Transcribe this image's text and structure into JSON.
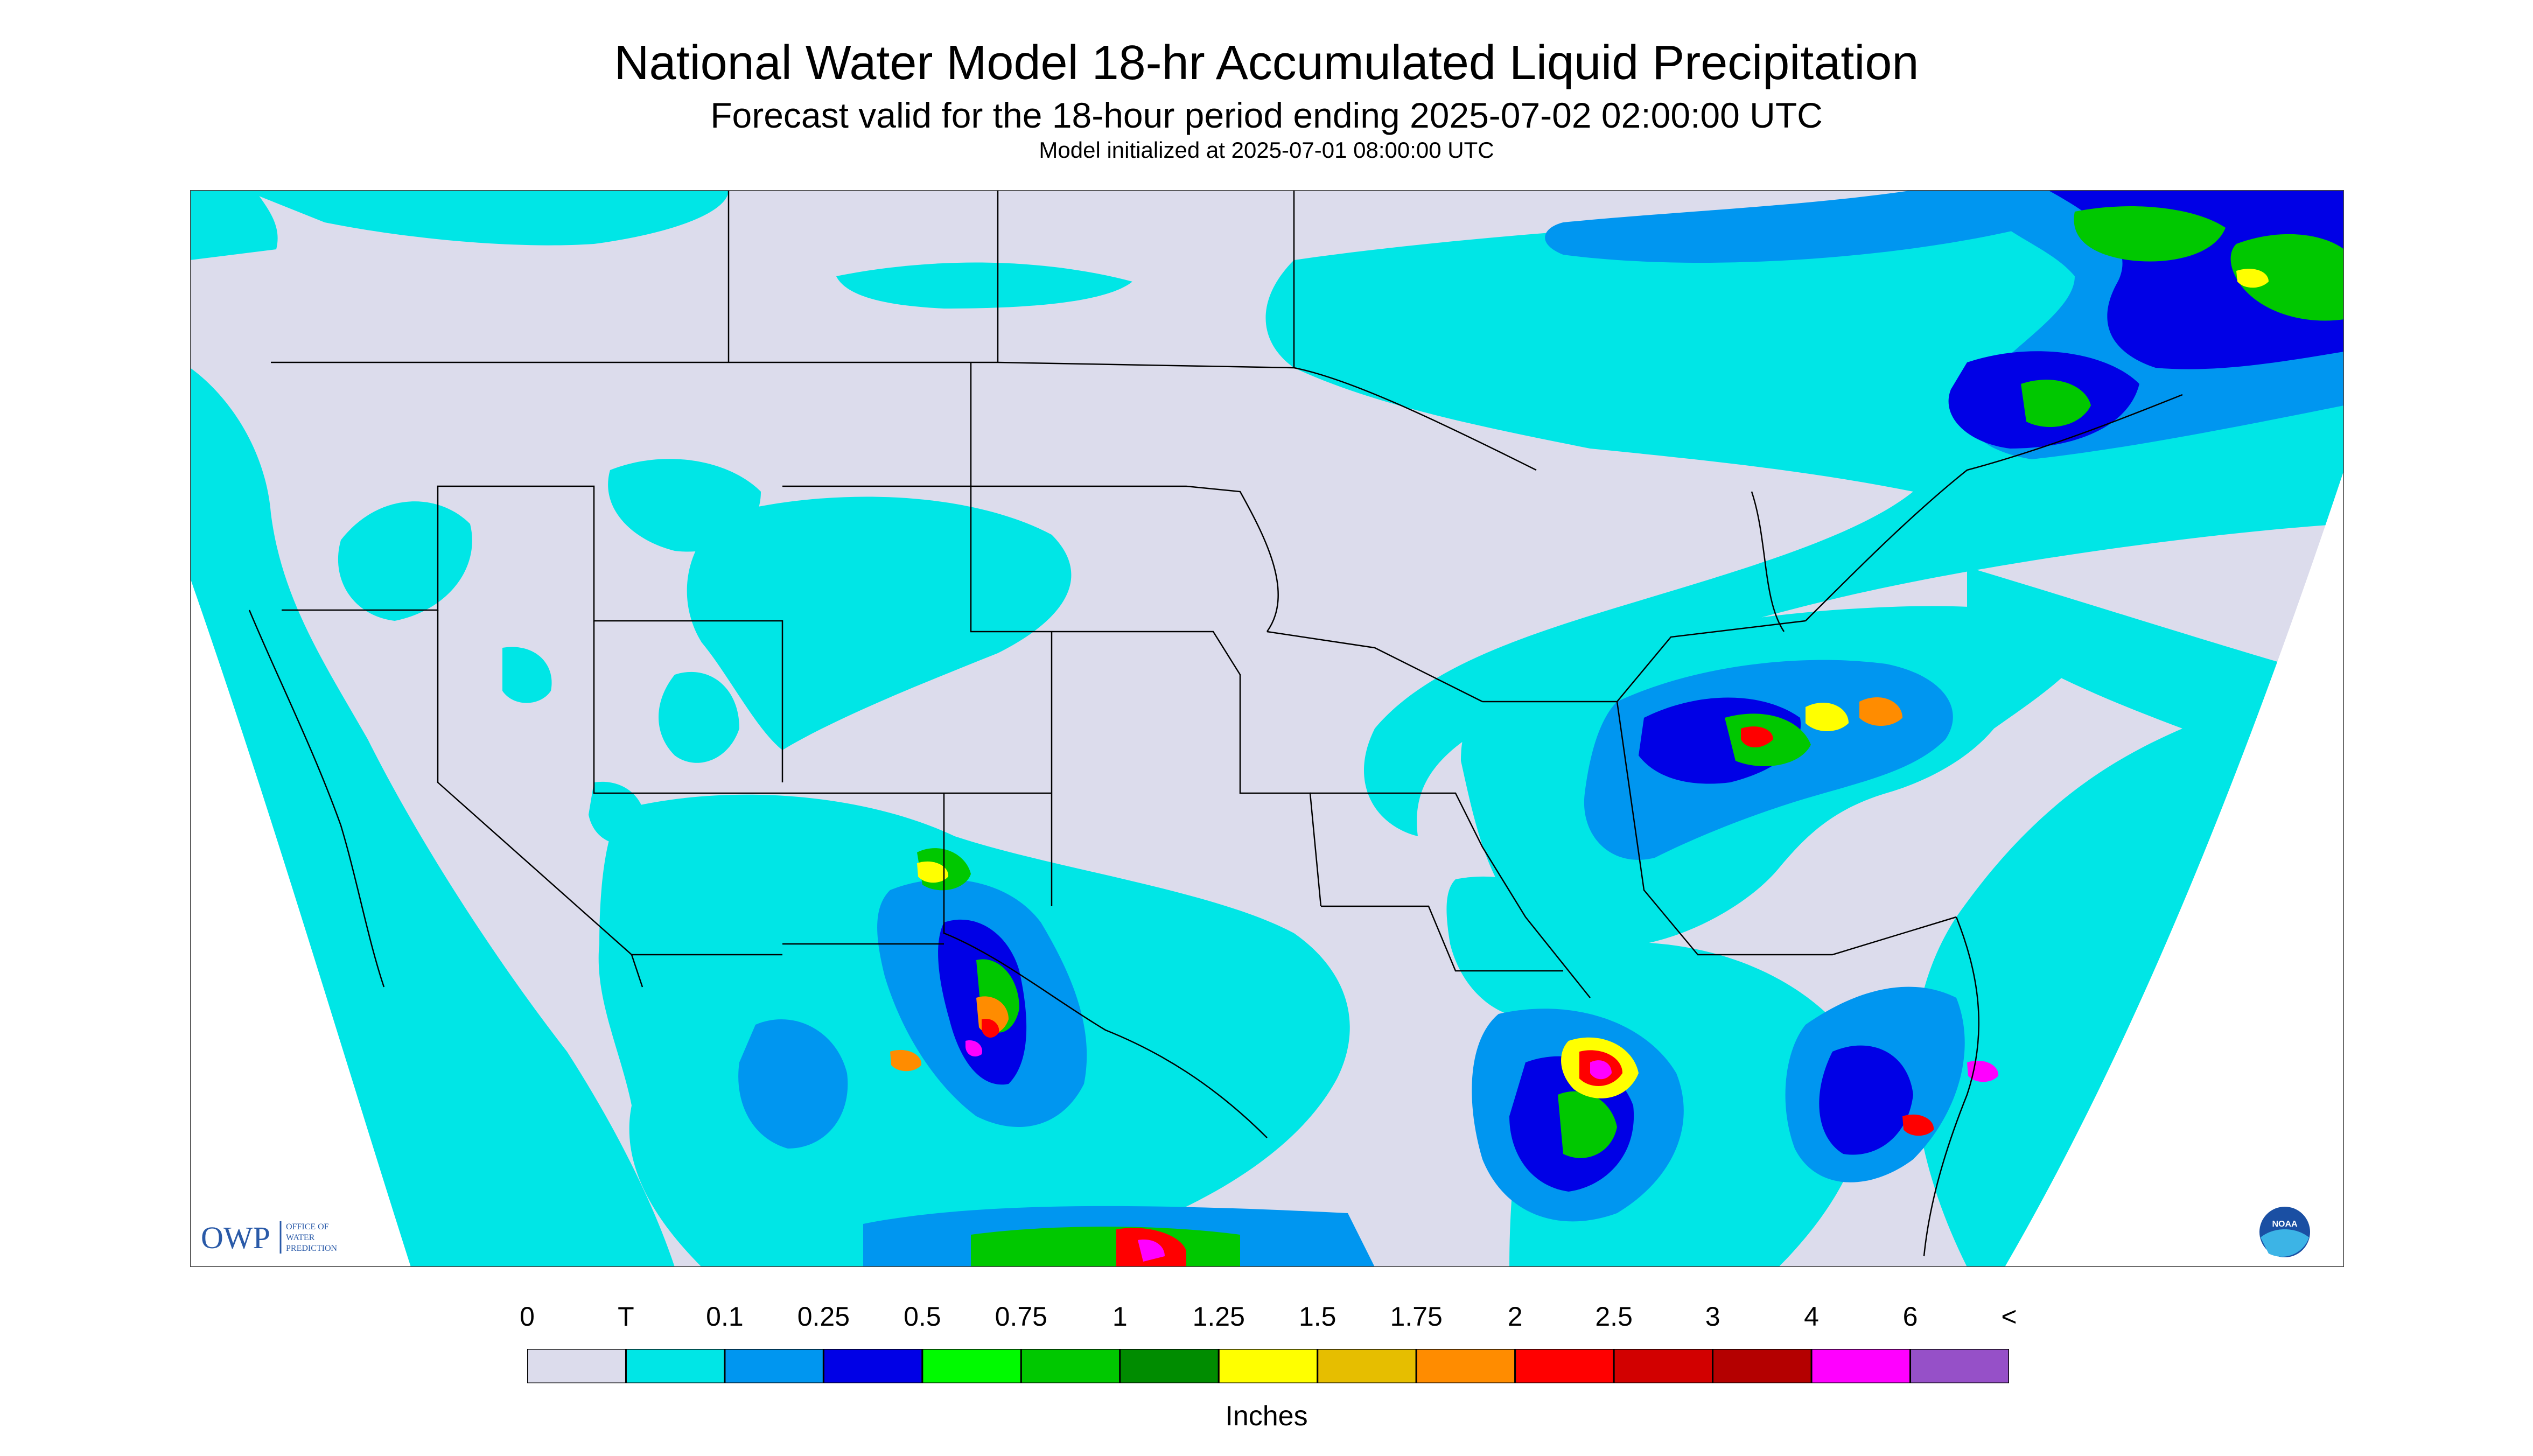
{
  "title": "National Water Model 18-hr Accumulated Liquid Precipitation",
  "subtitle": "Forecast valid for the 18-hour period ending 2025-07-02 02:00:00 UTC",
  "init_line": "Model initialized at 2025-07-01 08:00:00 UTC",
  "logo_owp": {
    "mark": "OWP",
    "text": [
      "OFFICE OF",
      "WATER",
      "PREDICTION"
    ]
  },
  "logo_noaa": "NOAA",
  "legend": {
    "units": "Inches",
    "tick_labels": [
      "0",
      "T",
      "0.1",
      "0.25",
      "0.5",
      "0.75",
      "1",
      "1.25",
      "1.5",
      "1.75",
      "2",
      "2.5",
      "3",
      "4",
      "6",
      "<"
    ],
    "colors": [
      "#dcdcec",
      "#00e6e6",
      "#0096f0",
      "#0000e6",
      "#00fa00",
      "#00c800",
      "#008c00",
      "#ffff00",
      "#e6be00",
      "#ff8c00",
      "#ff0000",
      "#d20000",
      "#b40000",
      "#ff00ff",
      "#9650c8"
    ]
  },
  "map_colors": {
    "no_precip": "#dcdcec",
    "trace": "#00e6e6",
    "light": "#0096f0",
    "moderate": "#0000e6",
    "heavy_green": "#00c800",
    "yellow": "#ffff00",
    "orange": "#ff8c00",
    "red": "#ff0000",
    "magenta": "#ff00ff",
    "outside": "#ffffff",
    "borders": "#000000"
  }
}
